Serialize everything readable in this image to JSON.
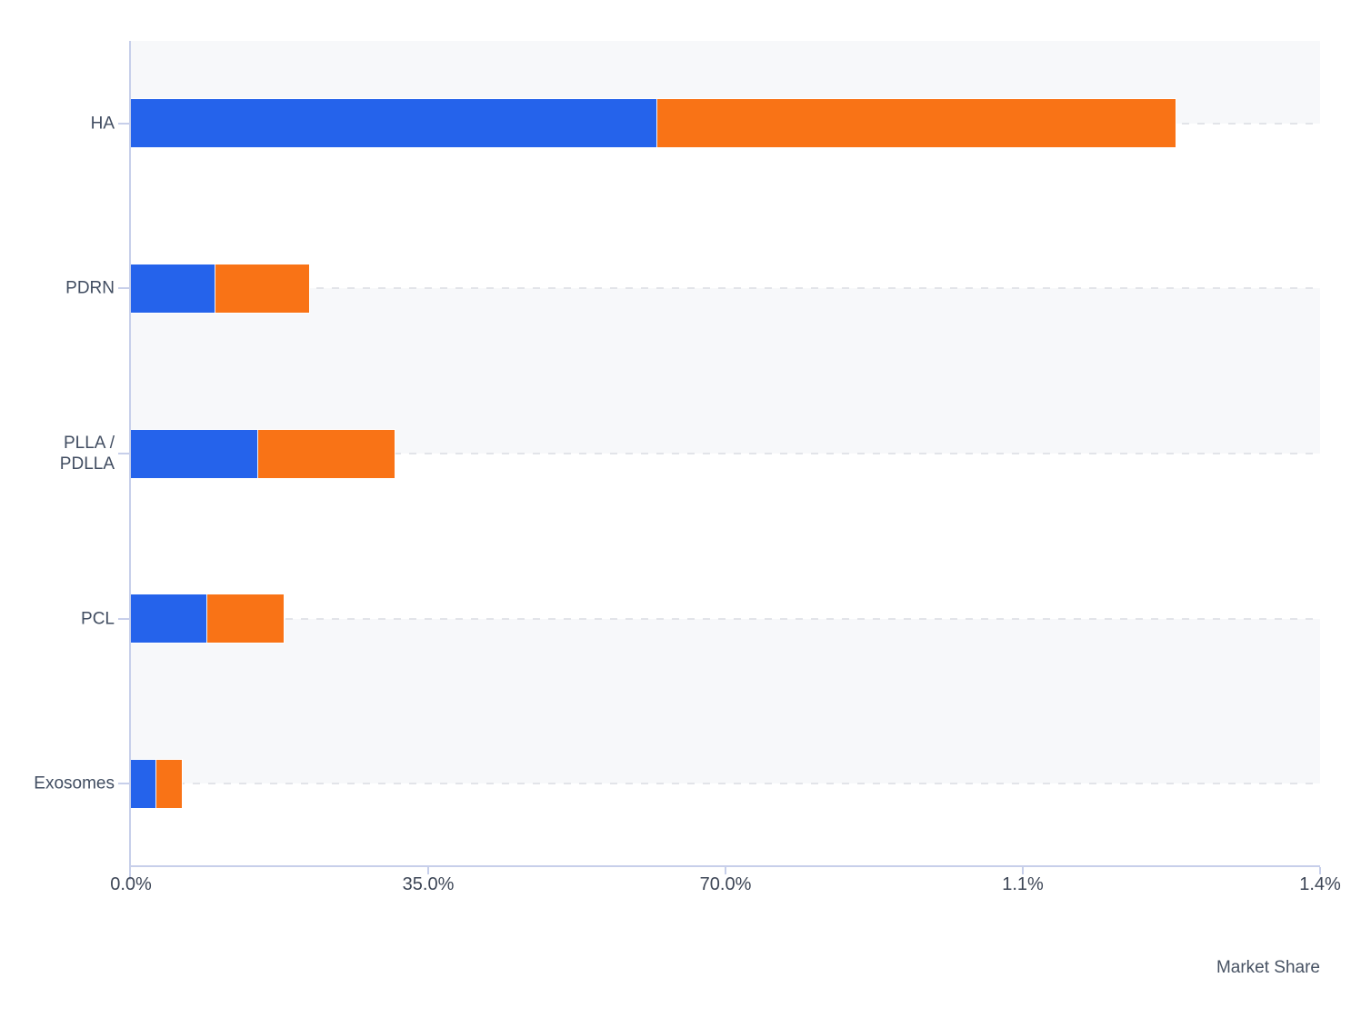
{
  "chart_data": {
    "type": "bar",
    "orientation": "horizontal",
    "stacked": true,
    "title": "",
    "xlabel": "Market Share",
    "ylabel": "",
    "categories": [
      "HA",
      "PDRN",
      "PLLA / PDLLA",
      "PCL",
      "Exosomes"
    ],
    "series": [
      {
        "name": "blue",
        "color": "#2563eb",
        "values": [
          62,
          10,
          15,
          9,
          3
        ]
      },
      {
        "name": "orange",
        "color": "#f97316",
        "values": [
          61,
          11,
          16,
          9,
          3
        ]
      }
    ],
    "totals": [
      123,
      21,
      31,
      18,
      6
    ],
    "xlim": [
      0,
      140
    ],
    "x_tick_labels": [
      "0.0%",
      "35.0%",
      "70.0%",
      "1.1%",
      "1.4%"
    ],
    "grid": "dashed horizontal lines at each category center, alternating light row bands",
    "legend": "none"
  },
  "colors": {
    "bar_blue": "#2563eb",
    "bar_orange": "#f97316",
    "row_band": "#f7f8fa",
    "gridline": "#e2e4e9",
    "axis_line": "#c7cfea",
    "text": "#414d61"
  }
}
